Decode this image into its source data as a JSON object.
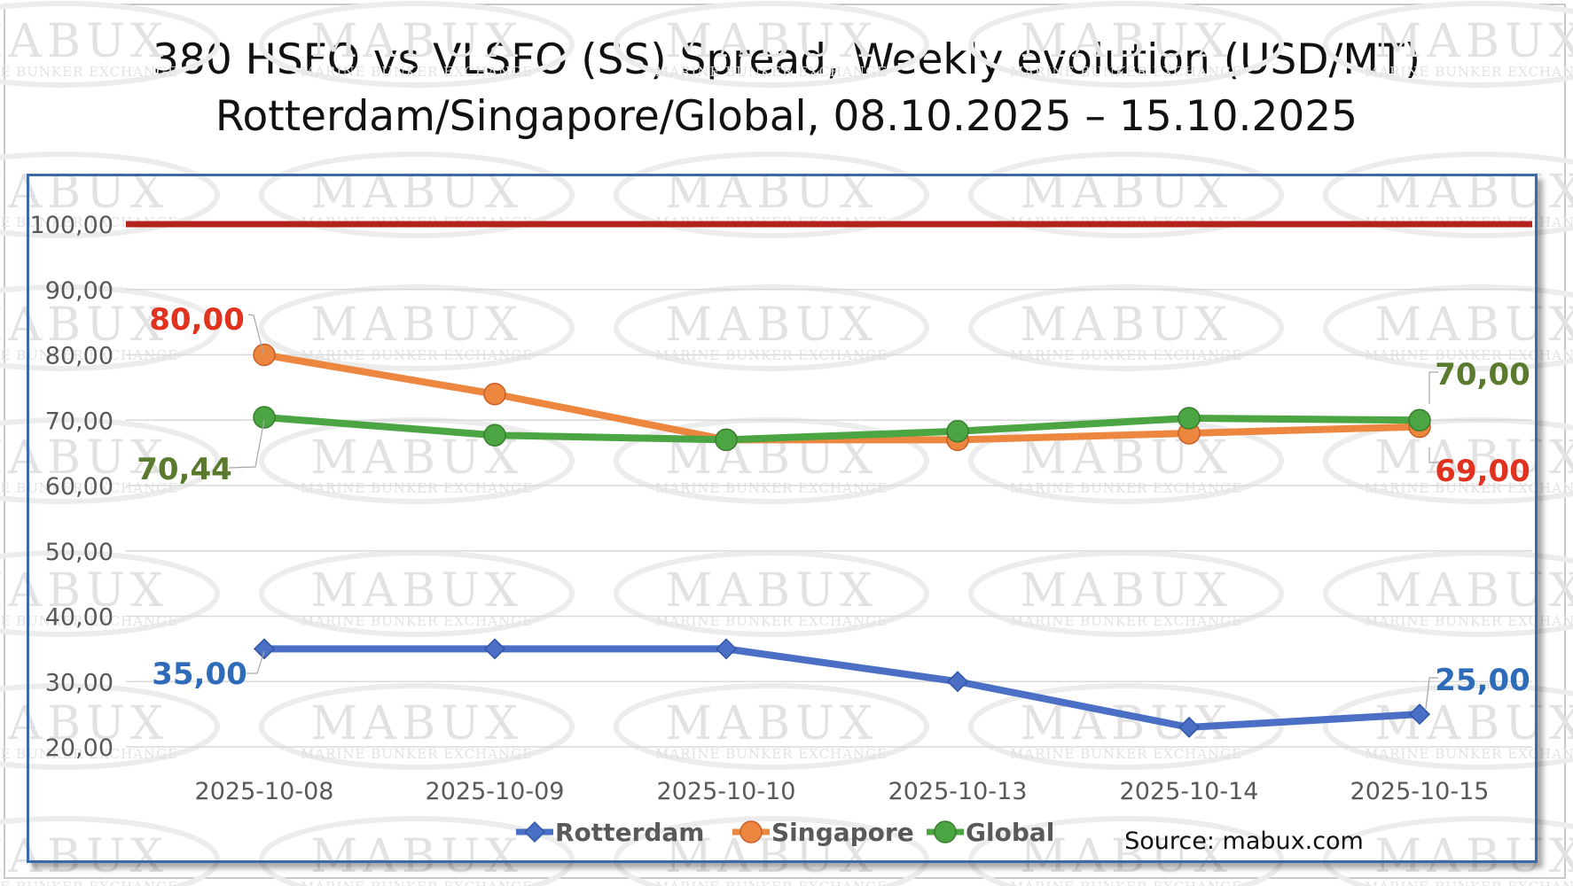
{
  "chart_data": {
    "type": "line",
    "title": "380 HSFO vs VLSFO (SS) Spread, Weekly evolution (USD/MT)",
    "subtitle": "Rotterdam/Singapore/Global, 08.10.2025 – 15.10.2025",
    "categories": [
      "2025-10-08",
      "2025-10-09",
      "2025-10-10",
      "2025-10-13",
      "2025-10-14",
      "2025-10-15"
    ],
    "y_ticks": [
      "20,00",
      "30,00",
      "40,00",
      "50,00",
      "60,00",
      "70,00",
      "80,00",
      "90,00",
      "100,00"
    ],
    "ylim": [
      20,
      100
    ],
    "reference_line": {
      "value": 100,
      "color": "#b5221b"
    },
    "grid": true,
    "series": [
      {
        "name": "Rotterdam",
        "color": "#4a6fc4",
        "marker": "diamond",
        "values": [
          35,
          35,
          35,
          30,
          23,
          25
        ],
        "labels": {
          "first": "35,00",
          "last": "25,00"
        }
      },
      {
        "name": "Singapore",
        "color": "#ed873f",
        "marker": "circle",
        "values": [
          80,
          74,
          67,
          67,
          68,
          69
        ],
        "labels": {
          "first": "80,00",
          "last": "69,00"
        }
      },
      {
        "name": "Global",
        "color": "#4aa542",
        "marker": "circle",
        "values": [
          70.44,
          67.7,
          67,
          68.3,
          70.3,
          70
        ],
        "labels": {
          "first": "70,44",
          "last": "70,00"
        }
      }
    ],
    "label_colors": {
      "Rotterdam": "#2e6bb8",
      "Singapore": "#e0321e",
      "Global": "#5a7a2e"
    },
    "legend_position": "bottom",
    "source": "Source: mabux.com"
  },
  "watermark": {
    "brand": "MABUX",
    "tagline": "MARINE BUNKER EXCHANGE"
  }
}
